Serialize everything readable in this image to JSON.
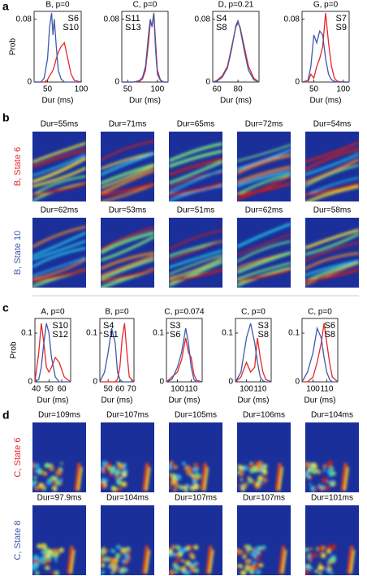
{
  "panels": [
    "a",
    "b",
    "c",
    "d"
  ],
  "chart_data": [
    {
      "type": "line",
      "title": "B, p=0",
      "xlabel": "Dur (ms)",
      "ylabel": "Prob",
      "legend": "upper right",
      "x": [
        30,
        40,
        45,
        50,
        53,
        56,
        58,
        60,
        63,
        66,
        70,
        75,
        80,
        85,
        90,
        100
      ],
      "xlim": [
        30,
        100
      ],
      "xticks": [
        50,
        100
      ],
      "ylim": [
        0,
        0.09
      ],
      "yticks": [
        0,
        0.08
      ],
      "series": [
        {
          "name": "S6",
          "color": "#e8262b",
          "values": [
            0,
            0,
            0,
            0.003,
            0.008,
            0.012,
            0.015,
            0.02,
            0.03,
            0.038,
            0.045,
            0.05,
            0.03,
            0.01,
            0.002,
            0
          ]
        },
        {
          "name": "S10",
          "color": "#3e5ba9",
          "values": [
            0,
            0,
            0.005,
            0.03,
            0.07,
            0.088,
            0.06,
            0.08,
            0.045,
            0.015,
            0.004,
            0,
            0,
            0,
            0,
            0
          ]
        }
      ]
    },
    {
      "type": "line",
      "title": "C, p=0",
      "xlabel": "Dur (ms)",
      "legend": "upper left",
      "x": [
        40,
        60,
        70,
        75,
        80,
        85,
        88,
        91,
        94,
        97,
        100,
        105,
        110,
        118
      ],
      "xlim": [
        40,
        118
      ],
      "xticks": [
        50,
        100
      ],
      "ylim": [
        0,
        0.09
      ],
      "yticks": [
        0,
        0.08
      ],
      "series": [
        {
          "name": "S11",
          "color": "#e8262b",
          "values": [
            0,
            0,
            0.001,
            0.004,
            0.015,
            0.05,
            0.075,
            0.072,
            0.088,
            0.05,
            0.015,
            0.003,
            0,
            0
          ]
        },
        {
          "name": "S13",
          "color": "#3e5ba9",
          "values": [
            0,
            0,
            0.002,
            0.006,
            0.02,
            0.06,
            0.08,
            0.07,
            0.087,
            0.04,
            0.01,
            0.002,
            0,
            0
          ]
        }
      ]
    },
    {
      "type": "line",
      "title": "D, p=0.21",
      "xlabel": "Dur (ms)",
      "legend": "upper left",
      "x": [
        56,
        60,
        65,
        70,
        74,
        78,
        80,
        82,
        86,
        90,
        95,
        100
      ],
      "xlim": [
        56,
        100
      ],
      "xticks": [
        60,
        80
      ],
      "ylim": [
        0,
        0.09
      ],
      "yticks": [
        0,
        0.08
      ],
      "series": [
        {
          "name": "S4",
          "color": "#e8262b",
          "values": [
            0,
            0.002,
            0.008,
            0.02,
            0.045,
            0.07,
            0.075,
            0.07,
            0.045,
            0.02,
            0.005,
            0
          ]
        },
        {
          "name": "S8",
          "color": "#3e5ba9",
          "values": [
            0,
            0.001,
            0.006,
            0.018,
            0.042,
            0.072,
            0.078,
            0.068,
            0.04,
            0.015,
            0.003,
            0
          ]
        }
      ]
    },
    {
      "type": "line",
      "title": "G, p=0",
      "xlabel": "Dur (ms)",
      "legend": "upper right",
      "x": [
        30,
        40,
        45,
        50,
        55,
        60,
        65,
        70,
        75,
        80,
        85,
        90,
        100,
        110
      ],
      "xlim": [
        30,
        110
      ],
      "xticks": [
        50,
        100
      ],
      "ylim": [
        0,
        0.09
      ],
      "yticks": [
        0,
        0.08
      ],
      "series": [
        {
          "name": "S7",
          "color": "#e8262b",
          "values": [
            0,
            0,
            0.01,
            0.005,
            0.02,
            0.03,
            0.045,
            0.088,
            0.05,
            0.02,
            0.005,
            0.001,
            0,
            0
          ]
        },
        {
          "name": "S9",
          "color": "#3e5ba9",
          "values": [
            0,
            0.002,
            0.02,
            0.06,
            0.05,
            0.065,
            0.06,
            0.03,
            0.01,
            0.003,
            0.001,
            0,
            0,
            0
          ]
        }
      ]
    },
    {
      "type": "line",
      "title": "A, p=0",
      "xlabel": "Dur (ms)",
      "ylabel": "Prob",
      "legend": "upper right",
      "x": [
        39,
        42,
        44,
        46,
        48,
        50,
        52,
        55,
        58,
        62,
        67
      ],
      "xlim": [
        39,
        67
      ],
      "xticks": [
        40,
        50,
        60
      ],
      "ylim": [
        0,
        0.13
      ],
      "yticks": [
        0,
        0.1
      ],
      "series": [
        {
          "name": "S10",
          "color": "#e8262b",
          "values": [
            0,
            0.06,
            0.12,
            0.08,
            0.03,
            0.02,
            0.03,
            0.05,
            0.04,
            0.01,
            0
          ]
        },
        {
          "name": "S12",
          "color": "#3e5ba9",
          "values": [
            0,
            0.005,
            0.03,
            0.08,
            0.12,
            0.1,
            0.05,
            0.01,
            0,
            0,
            0
          ]
        }
      ]
    },
    {
      "type": "line",
      "title": "B, p=0",
      "xlabel": "Dur (ms)",
      "legend": "upper left",
      "x": [
        43,
        47,
        50,
        53,
        56,
        58,
        60,
        62,
        64,
        66,
        68,
        72
      ],
      "xlim": [
        43,
        72
      ],
      "xticks": [
        50,
        60,
        70
      ],
      "ylim": [
        0,
        0.13
      ],
      "yticks": [
        0,
        0.1
      ],
      "series": [
        {
          "name": "S4",
          "color": "#e8262b",
          "values": [
            0,
            0,
            0,
            0,
            0,
            0.005,
            0.03,
            0.09,
            0.12,
            0.06,
            0.01,
            0
          ]
        },
        {
          "name": "S11",
          "color": "#3e5ba9",
          "values": [
            0,
            0.02,
            0.06,
            0.11,
            0.08,
            0.02,
            0.005,
            0,
            0,
            0,
            0,
            0
          ]
        }
      ]
    },
    {
      "type": "line",
      "title": "C, p=0.074",
      "xlabel": "Dur (ms)",
      "legend": "upper left",
      "x": [
        92,
        96,
        100,
        103,
        106,
        108,
        110,
        112,
        114,
        118
      ],
      "xlim": [
        92,
        118
      ],
      "xticks": [
        100,
        110
      ],
      "ylim": [
        0,
        0.13
      ],
      "yticks": [
        0,
        0.1
      ],
      "series": [
        {
          "name": "S3",
          "color": "#e8262b",
          "values": [
            0,
            0.01,
            0.02,
            0.045,
            0.09,
            0.06,
            0.05,
            0.015,
            0.003,
            0
          ]
        },
        {
          "name": "S6",
          "color": "#3e5ba9",
          "values": [
            0,
            0.005,
            0.03,
            0.06,
            0.11,
            0.08,
            0.03,
            0.005,
            0,
            0
          ]
        }
      ]
    },
    {
      "type": "line",
      "title": "C, p=0",
      "xlabel": "Dur (ms)",
      "legend": "upper right",
      "x": [
        92,
        96,
        100,
        103,
        106,
        108,
        110,
        112,
        114,
        118
      ],
      "xlim": [
        92,
        118
      ],
      "xticks": [
        100,
        110
      ],
      "ylim": [
        0,
        0.13
      ],
      "yticks": [
        0,
        0.1
      ],
      "series": [
        {
          "name": "S3",
          "color": "#e8262b",
          "values": [
            0,
            0.01,
            0.04,
            0.02,
            0.03,
            0.09,
            0.05,
            0.02,
            0.005,
            0
          ]
        },
        {
          "name": "S8",
          "color": "#3e5ba9",
          "values": [
            0,
            0.02,
            0.09,
            0.12,
            0.08,
            0.04,
            0.01,
            0.002,
            0,
            0
          ]
        }
      ]
    },
    {
      "type": "line",
      "title": "C, p=0",
      "xlabel": "Dur (ms)",
      "legend": "upper right",
      "x": [
        92,
        96,
        100,
        103,
        106,
        108,
        110,
        112,
        114,
        118
      ],
      "xlim": [
        92,
        118
      ],
      "xticks": [
        100,
        110
      ],
      "ylim": [
        0,
        0.13
      ],
      "yticks": [
        0,
        0.1
      ],
      "series": [
        {
          "name": "S6",
          "color": "#e8262b",
          "values": [
            0,
            0,
            0.01,
            0.04,
            0.08,
            0.12,
            0.08,
            0.04,
            0.01,
            0
          ]
        },
        {
          "name": "S8",
          "color": "#3e5ba9",
          "values": [
            0,
            0.02,
            0.06,
            0.11,
            0.09,
            0.05,
            0.02,
            0.005,
            0,
            0
          ]
        }
      ]
    }
  ],
  "spectrograms": [
    {
      "label": "B, State 6",
      "durations": [
        "Dur=55ms",
        "Dur=71ms",
        "Dur=65ms",
        "Dur=72ms",
        "Dur=54ms"
      ]
    },
    {
      "label": "B, State 10",
      "durations": [
        "Dur=62ms",
        "Dur=53ms",
        "Dur=51ms",
        "Dur=62ms",
        "Dur=58ms"
      ]
    },
    {
      "label": "C, State 6",
      "durations": [
        "Dur=109ms",
        "Dur=107ms",
        "Dur=105ms",
        "Dur=106ms",
        "Dur=104ms"
      ]
    },
    {
      "label": "C, State 8",
      "durations": [
        "Dur=97.9ms",
        "Dur=104ms",
        "Dur=107ms",
        "Dur=107ms",
        "Dur=101ms"
      ]
    }
  ]
}
